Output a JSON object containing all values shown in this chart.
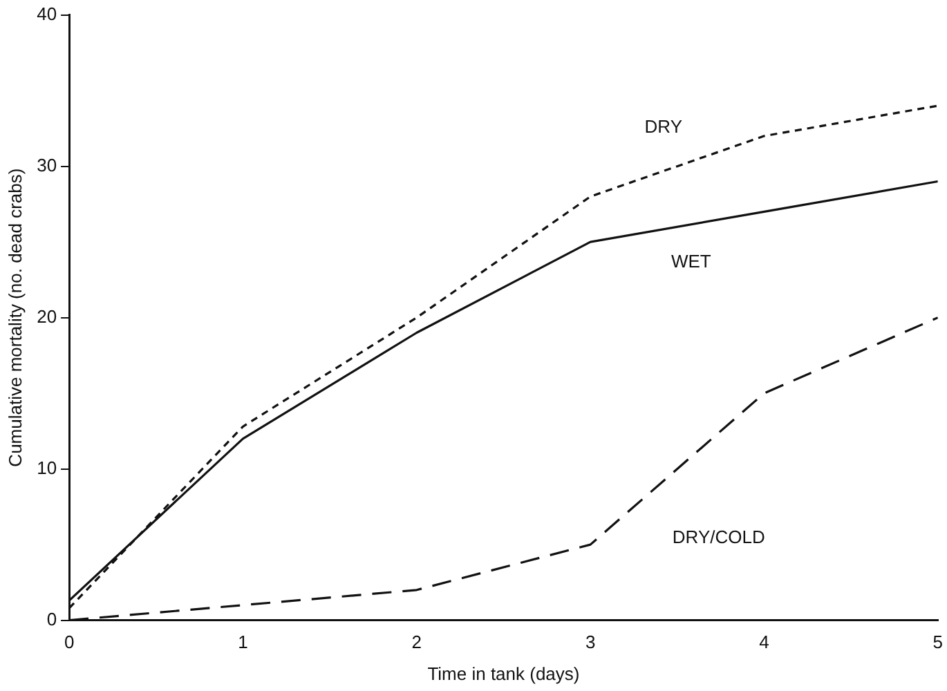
{
  "chart_data": {
    "type": "line",
    "xlabel": "Time in tank (days)",
    "ylabel": "Cumulative mortality (no. dead crabs)",
    "x": [
      0,
      1,
      2,
      3,
      4,
      5
    ],
    "series": [
      {
        "name": "DRY",
        "color": "#111111",
        "line_style": "dotted",
        "values": [
          0.8,
          12.8,
          20,
          28,
          32,
          34
        ]
      },
      {
        "name": "WET",
        "color": "#111111",
        "line_style": "solid",
        "values": [
          1.3,
          12,
          19,
          25,
          27,
          29
        ]
      },
      {
        "name": "DRY/COLD",
        "color": "#111111",
        "line_style": "dashed",
        "values": [
          0,
          1,
          2,
          5,
          15,
          20
        ]
      }
    ],
    "xlim": [
      0,
      5
    ],
    "xticks": [
      0,
      1,
      2,
      3,
      4,
      5
    ],
    "ylim": [
      0,
      40
    ],
    "yticks": [
      0,
      10,
      20,
      30,
      40
    ],
    "grid": false,
    "legend": false,
    "marker": "none"
  }
}
